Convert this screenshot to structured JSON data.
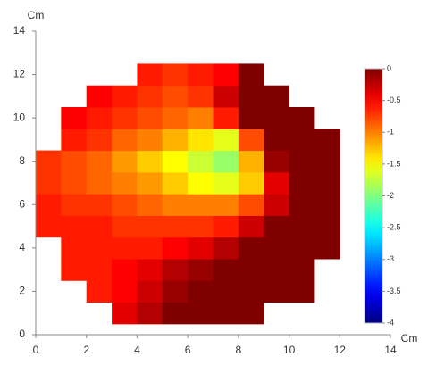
{
  "chart_data": {
    "type": "heatmap",
    "xlabel": "Cm",
    "ylabel": "Cm",
    "xlim": [
      0,
      14
    ],
    "ylim": [
      0,
      14
    ],
    "xticks": [
      0,
      2,
      4,
      6,
      8,
      10,
      12,
      14
    ],
    "yticks": [
      0,
      2,
      4,
      6,
      8,
      10,
      12,
      14
    ],
    "x_edges": [
      0,
      1,
      2,
      3,
      4,
      5,
      6,
      7,
      8,
      9,
      10,
      11,
      12
    ],
    "y_edges": [
      0.5,
      1.5,
      2.5,
      3.5,
      4.5,
      5.5,
      6.5,
      7.5,
      8.5,
      9.5,
      10.5,
      11.5,
      12.5
    ],
    "z": [
      [
        null,
        null,
        null,
        -0.4,
        -0.2,
        0,
        0,
        0,
        0,
        null,
        null,
        null
      ],
      [
        null,
        null,
        -0.6,
        -0.5,
        -0.3,
        -0.1,
        0,
        0,
        0,
        0,
        0,
        null
      ],
      [
        null,
        -0.6,
        -0.6,
        -0.5,
        -0.4,
        -0.2,
        -0.1,
        0,
        0,
        0,
        0,
        null
      ],
      [
        null,
        -0.6,
        -0.6,
        -0.6,
        -0.6,
        -0.5,
        -0.4,
        -0.2,
        0,
        0,
        0,
        0
      ],
      [
        -0.6,
        -0.6,
        -0.6,
        -0.7,
        -0.7,
        -0.7,
        -0.7,
        -0.6,
        -0.3,
        0,
        0,
        0
      ],
      [
        -0.6,
        -0.7,
        -0.7,
        -0.8,
        -0.9,
        -1.0,
        -1.0,
        -1.0,
        -0.8,
        -0.3,
        0,
        0
      ],
      [
        -0.7,
        -0.8,
        -0.9,
        -1.0,
        -1.1,
        -1.3,
        -1.5,
        -1.6,
        -1.3,
        -0.4,
        0,
        0
      ],
      [
        -0.7,
        -0.8,
        -0.9,
        -1.1,
        -1.3,
        -1.5,
        -1.7,
        -1.9,
        -1.2,
        -0.1,
        0,
        0
      ],
      [
        null,
        -0.6,
        -0.7,
        -0.9,
        -1.0,
        -1.2,
        -1.4,
        -1.6,
        -0.8,
        0,
        0,
        0
      ],
      [
        null,
        -0.5,
        -0.6,
        -0.7,
        -0.8,
        -0.9,
        -1.0,
        -0.6,
        0,
        0,
        0,
        null
      ],
      [
        null,
        null,
        -0.5,
        -0.6,
        -0.7,
        -0.8,
        -0.7,
        -0.3,
        0,
        0,
        null,
        null
      ],
      [
        null,
        null,
        null,
        null,
        -0.6,
        -0.7,
        -0.6,
        -0.5,
        0,
        null,
        null,
        null
      ]
    ],
    "colormap": "jet",
    "colorbar": {
      "lim": [
        -4,
        0
      ],
      "ticks": [
        0,
        -0.5,
        -1,
        -1.5,
        -2,
        -2.5,
        -3,
        -3.5,
        -4
      ]
    }
  }
}
